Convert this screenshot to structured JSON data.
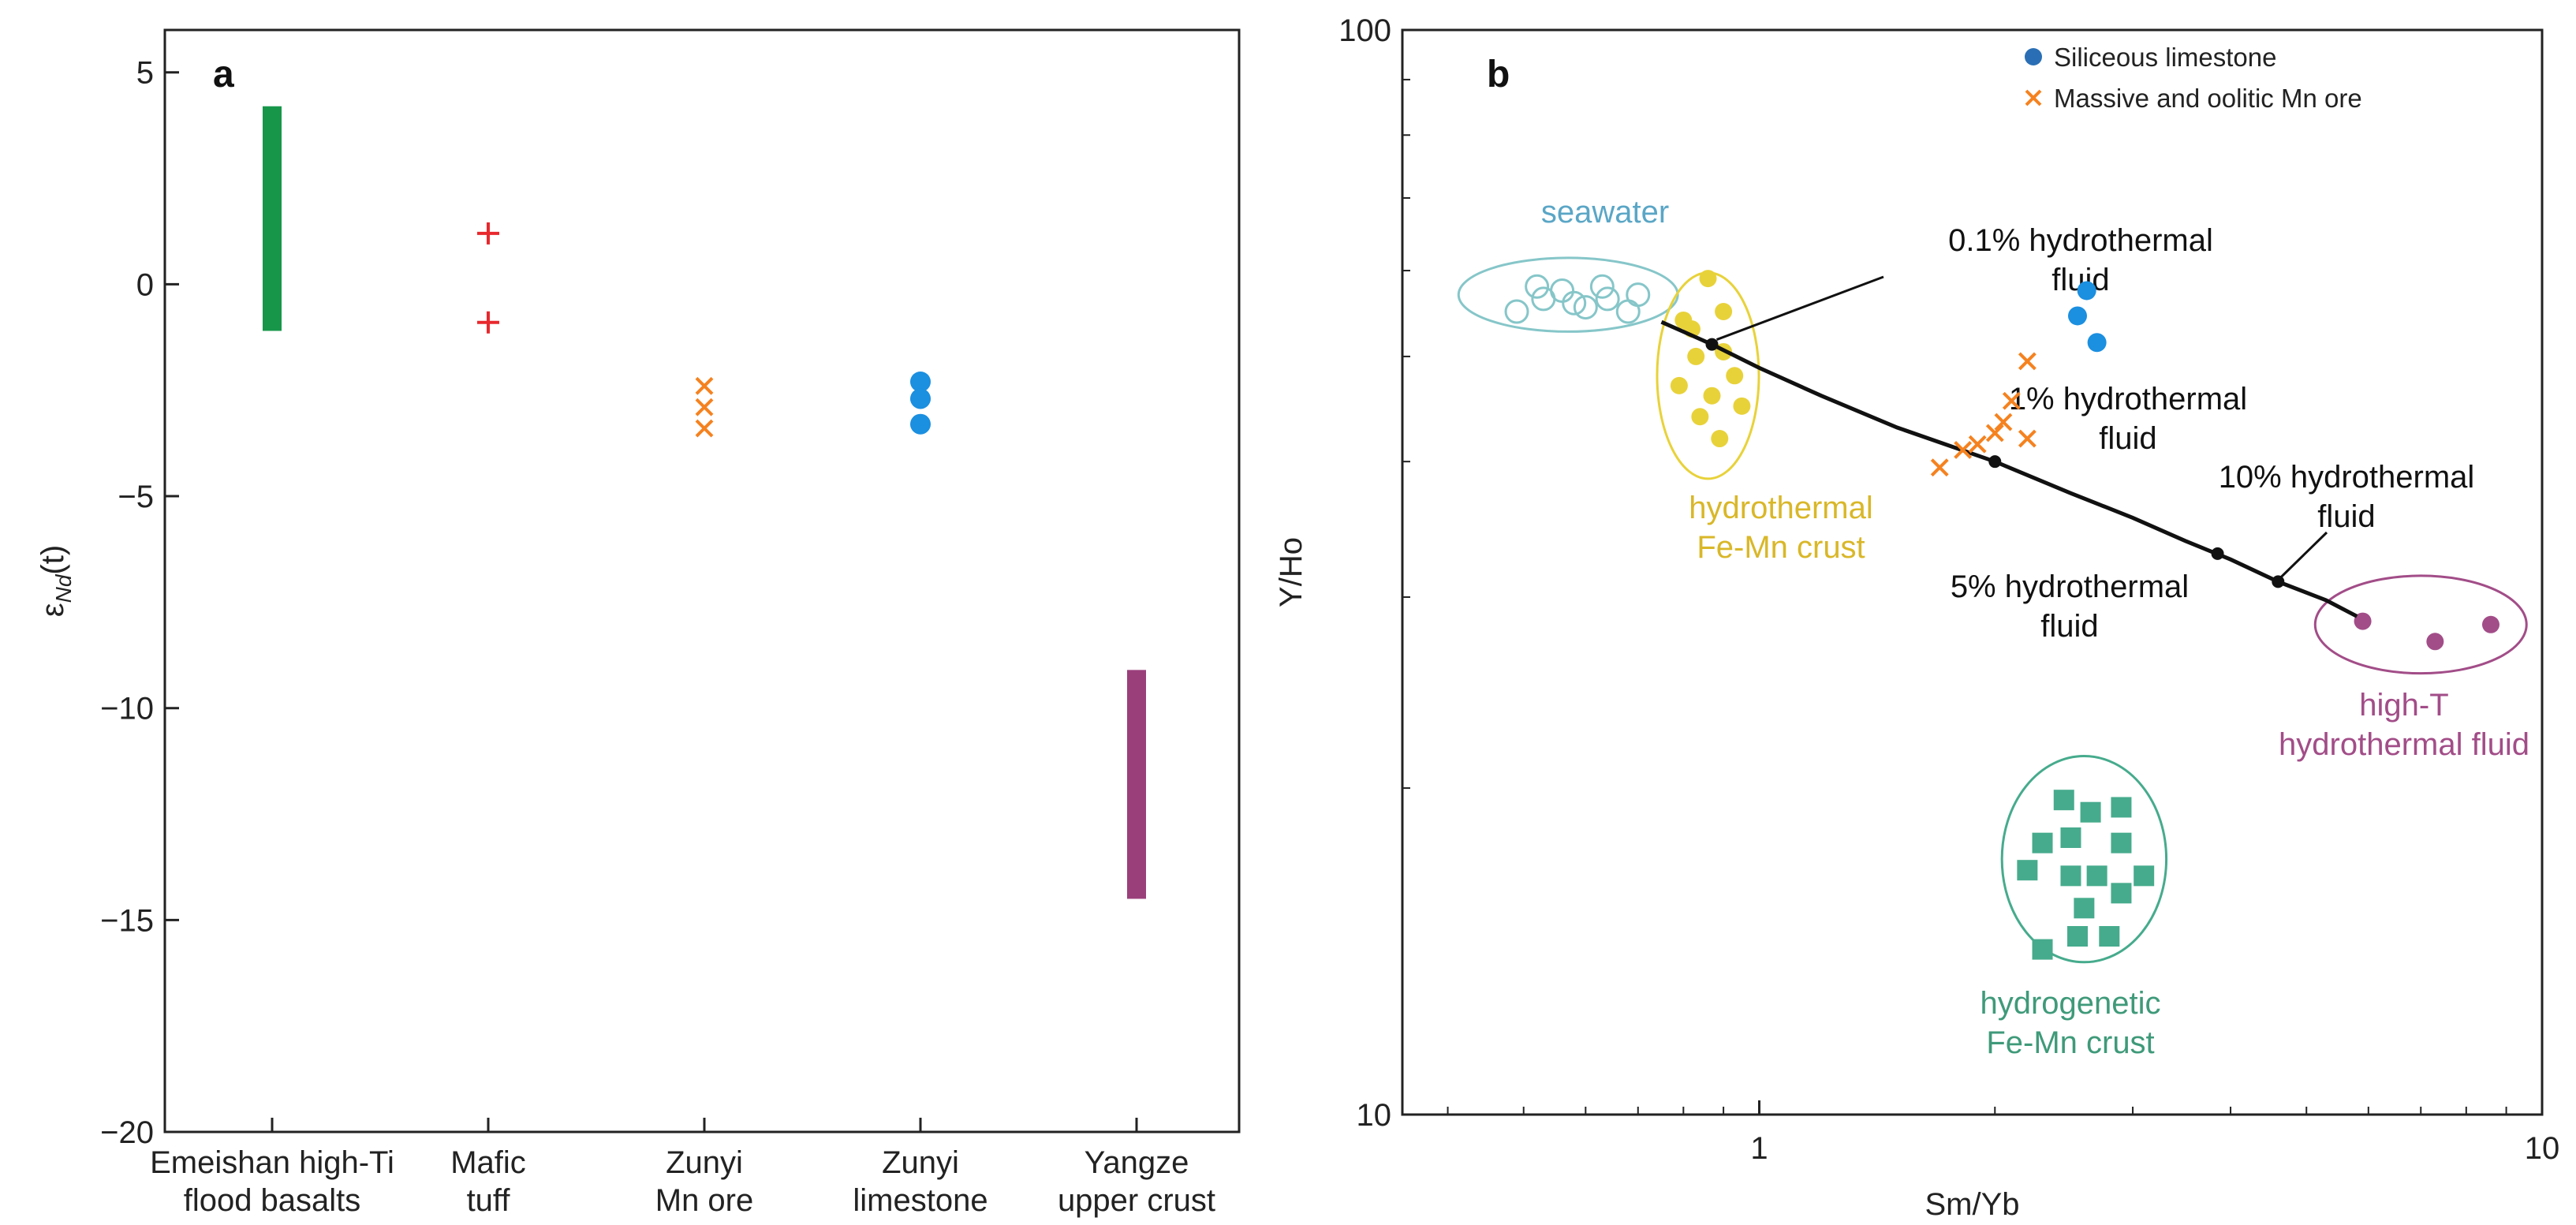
{
  "panels": {
    "a": {
      "label": "a"
    },
    "b": {
      "label": "b"
    }
  },
  "chart_data": [
    {
      "type": "scatter",
      "panel": "a",
      "ylabel_main": "ε",
      "ylabel_sub": "Nd",
      "ylabel_tail": "(t)",
      "ylim": [
        -20,
        6
      ],
      "yticks": [
        5,
        0,
        -5,
        -10,
        -15,
        -20
      ],
      "grid": false,
      "categories": [
        [
          "Emeishan high-Ti",
          "flood basalts"
        ],
        [
          "Mafic",
          "tuff"
        ],
        [
          "Zunyi",
          "Mn ore"
        ],
        [
          "Zunyi",
          "limestone"
        ],
        [
          "Yangze",
          "upper crust"
        ]
      ],
      "groups": [
        {
          "category": 0,
          "kind": "range",
          "color": "#17964a",
          "range": [
            -1.1,
            4.2
          ]
        },
        {
          "category": 1,
          "kind": "points",
          "marker": "plus",
          "color": "#e8282d",
          "values": [
            1.2,
            -0.9
          ]
        },
        {
          "category": 2,
          "kind": "points",
          "marker": "x",
          "color": "#f5821f",
          "values": [
            -2.4,
            -2.9,
            -3.4
          ]
        },
        {
          "category": 3,
          "kind": "points",
          "marker": "circle",
          "color": "#1b8fe0",
          "values": [
            -2.3,
            -2.7,
            -3.3
          ]
        },
        {
          "category": 4,
          "kind": "range",
          "color": "#9b3f7b",
          "range": [
            -14.5,
            -9.1
          ]
        }
      ]
    },
    {
      "type": "scatter",
      "panel": "b",
      "xlabel": "Sm/Yb",
      "ylabel": "Y/Ho",
      "xscale": "log",
      "yscale": "log",
      "xlim": [
        0.35,
        10
      ],
      "ylim": [
        10,
        100
      ],
      "xticks": [
        1,
        10
      ],
      "xtick_labels": [
        "1",
        "10"
      ],
      "yticks": [
        10,
        100
      ],
      "ytick_labels": [
        "10",
        "100"
      ],
      "grid": false,
      "legend": {
        "position": "top-right",
        "entries": [
          {
            "label": "Siliceous limestone",
            "marker": "circle",
            "color": "#2a6fb5"
          },
          {
            "label": "Massive and oolitic Mn ore",
            "marker": "x",
            "color": "#f5821f"
          }
        ]
      },
      "series": [
        {
          "name": "Siliceous limestone",
          "marker": "circle",
          "color": "#1b8fe0",
          "points": [
            [
              2.62,
              57.5
            ],
            [
              2.55,
              54.5
            ],
            [
              2.7,
              51.5
            ]
          ]
        },
        {
          "name": "Massive and oolitic Mn ore",
          "marker": "x",
          "color": "#f5821f",
          "points": [
            [
              2.2,
              49.5
            ],
            [
              2.1,
              45.5
            ],
            [
              2.05,
              43.5
            ],
            [
              2.2,
              42.0
            ],
            [
              1.9,
              41.5
            ],
            [
              2.0,
              42.5
            ],
            [
              1.82,
              41.0
            ],
            [
              1.7,
              39.5
            ]
          ]
        }
      ],
      "fields": [
        {
          "name": "seawater",
          "label_lines": [
            "seawater"
          ],
          "color": "#86c6c9",
          "label_color": "#5aa6c6",
          "marker": "open-circle",
          "center": [
            0.57,
            57
          ],
          "radii_decades": [
            0.14,
            0.034
          ],
          "points": [
            [
              0.49,
              55.0
            ],
            [
              0.53,
              56.5
            ],
            [
              0.56,
              57.5
            ],
            [
              0.6,
              55.5
            ],
            [
              0.64,
              56.5
            ],
            [
              0.68,
              55.0
            ],
            [
              0.52,
              58.0
            ],
            [
              0.58,
              56.0
            ],
            [
              0.63,
              58.0
            ],
            [
              0.7,
              57.0
            ]
          ]
        },
        {
          "name": "hydrothermal Fe-Mn crust",
          "label_lines": [
            "hydrothermal",
            "Fe-Mn crust"
          ],
          "color": "#e8d23a",
          "label_color": "#d9b728",
          "marker": "filled-circle",
          "center": [
            0.86,
            48
          ],
          "radii_decades": [
            0.065,
            0.095
          ],
          "points": [
            [
              0.86,
              59.0
            ],
            [
              0.8,
              54.0
            ],
            [
              0.9,
              55.0
            ],
            [
              0.83,
              50.0
            ],
            [
              0.9,
              50.5
            ],
            [
              0.79,
              47.0
            ],
            [
              0.87,
              46.0
            ],
            [
              0.93,
              48.0
            ],
            [
              0.84,
              44.0
            ],
            [
              0.95,
              45.0
            ],
            [
              0.89,
              42.0
            ],
            [
              0.82,
              53.0
            ]
          ]
        },
        {
          "name": "high-T hydrothermal fluid",
          "label_lines": [
            "high-T",
            "hydrothermal fluid"
          ],
          "color": "#a24d88",
          "label_color": "#a24d88",
          "marker": "filled-circle",
          "center": [
            7.0,
            28.3
          ],
          "radii_decades": [
            0.135,
            0.045
          ],
          "points": [
            [
              5.9,
              28.5
            ],
            [
              7.3,
              27.3
            ],
            [
              8.6,
              28.3
            ]
          ]
        },
        {
          "name": "hydrogenetic Fe-Mn crust",
          "label_lines": [
            "hydrogenetic",
            "Fe-Mn crust"
          ],
          "color": "#46ab8c",
          "label_color": "#3f9a7a",
          "marker": "square",
          "center": [
            2.6,
            17.2
          ],
          "radii_decades": [
            0.105,
            0.095
          ],
          "points": [
            [
              2.45,
              19.5
            ],
            [
              2.65,
              19.0
            ],
            [
              2.9,
              19.2
            ],
            [
              2.3,
              17.8
            ],
            [
              2.5,
              18.0
            ],
            [
              2.9,
              17.8
            ],
            [
              2.2,
              16.8
            ],
            [
              2.5,
              16.6
            ],
            [
              2.7,
              16.6
            ],
            [
              3.1,
              16.6
            ],
            [
              2.6,
              15.5
            ],
            [
              2.9,
              16.0
            ],
            [
              2.55,
              14.6
            ],
            [
              2.8,
              14.6
            ],
            [
              2.3,
              14.2
            ]
          ]
        }
      ],
      "mixing_curve": {
        "color": "#111111",
        "points": [
          [
            0.75,
            53.8
          ],
          [
            0.8,
            52.7
          ],
          [
            0.87,
            51.3
          ],
          [
            1.0,
            48.8
          ],
          [
            1.2,
            46.0
          ],
          [
            1.5,
            43.0
          ],
          [
            2.0,
            40.0
          ],
          [
            2.5,
            37.4
          ],
          [
            3.0,
            35.5
          ],
          [
            3.5,
            33.8
          ],
          [
            4.0,
            32.5
          ],
          [
            4.6,
            31.0
          ],
          [
            5.3,
            29.8
          ],
          [
            5.8,
            28.8
          ]
        ],
        "marks": [
          {
            "label_lines": [
              "0.1% hydrothermal",
              "fluid"
            ],
            "at": [
              0.87,
              51.3
            ],
            "anchor": [
              1.6,
              57.0
            ],
            "text_pos": [
              1.6,
              60.0
            ],
            "leader": true
          },
          {
            "label_lines": [
              "1% hydrothermal",
              "fluid"
            ],
            "at": [
              2.0,
              40.0
            ],
            "anchor": [
              2.0,
              40.0
            ],
            "text_pos": [
              2.0,
              46.0
            ],
            "leader": false
          },
          {
            "label_lines": [
              "10% hydrothermal",
              "fluid"
            ],
            "at": [
              4.6,
              31.0
            ],
            "anchor": [
              4.9,
              34.0
            ],
            "text_pos": [
              4.9,
              38.0
            ],
            "leader": true
          },
          {
            "label_lines": [
              "5% hydrothermal",
              "fluid"
            ],
            "at": [
              3.85,
              32.9
            ],
            "anchor": [
              3.85,
              32.9
            ],
            "text_pos": [
              3.1,
              30.5
            ],
            "leader": false
          }
        ]
      }
    }
  ]
}
